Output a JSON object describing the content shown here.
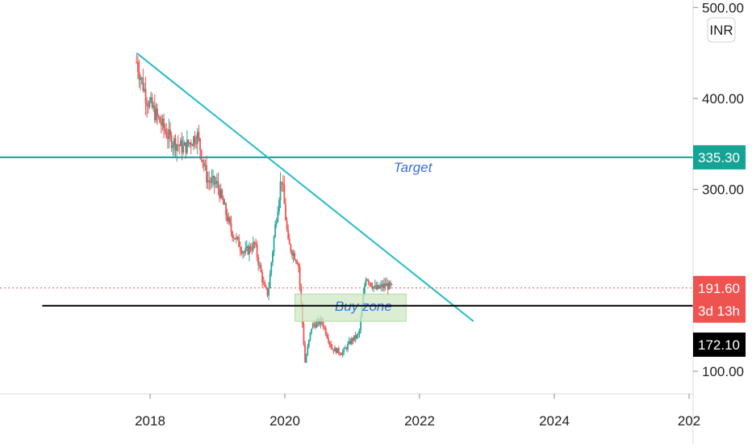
{
  "chart_data": {
    "type": "candlestick",
    "currency": "INR",
    "colors": {
      "up": "#26a69a",
      "down": "#ef5350",
      "trendline": "#22bcc8",
      "target_line": "#14a394",
      "support_line": "#000000",
      "buy_zone_fill": "#cfe8c4",
      "buy_zone_text": "#3a6fd8",
      "target_text": "#3a6fd8",
      "last_price_bg": "#ef5350",
      "support_bg": "#000000",
      "target_bg": "#14a394"
    },
    "x_axis": {
      "ticks": [
        {
          "label": "2018",
          "year": 2018.0
        },
        {
          "label": "2020",
          "year": 2020.0
        },
        {
          "label": "2022",
          "year": 2022.0
        },
        {
          "label": "2024",
          "year": 2024.0
        },
        {
          "label": "202",
          "year": 2026.0
        }
      ]
    },
    "y_axis": {
      "ticks": [
        {
          "label": "500.00",
          "value": 500
        },
        {
          "label": "400.00",
          "value": 400
        },
        {
          "label": "300.00",
          "value": 300
        },
        {
          "label": "100.00",
          "value": 100
        }
      ]
    },
    "price_labels": {
      "target": {
        "value": 335.3,
        "label": "335.30"
      },
      "last": {
        "value": 191.6,
        "label": "191.60",
        "countdown": "3d 13h"
      },
      "support": {
        "value": 172.1,
        "label": "172.10"
      }
    },
    "annotations": {
      "target_text": "Target",
      "buy_zone_text": "Buy zone",
      "buy_zone": {
        "x0": 2020.15,
        "x1": 2021.8,
        "y_top": 185,
        "y_bottom": 155
      },
      "trendline": {
        "x0": 2017.8,
        "y0": 450,
        "x1": 2022.8,
        "y1": 155
      },
      "support_line": {
        "x0": 2016.4,
        "x1": 2027.0,
        "value": 172.1
      },
      "target_line": {
        "value": 335.3
      }
    },
    "anchors": [
      [
        2017.8,
        440
      ],
      [
        2017.95,
        400
      ],
      [
        2018.1,
        380
      ],
      [
        2018.3,
        355
      ],
      [
        2018.5,
        345
      ],
      [
        2018.7,
        360
      ],
      [
        2018.85,
        310
      ],
      [
        2019.0,
        305
      ],
      [
        2019.2,
        255
      ],
      [
        2019.4,
        230
      ],
      [
        2019.55,
        240
      ],
      [
        2019.7,
        190
      ],
      [
        2019.75,
        185
      ],
      [
        2019.85,
        255
      ],
      [
        2019.95,
        315
      ],
      [
        2020.05,
        240
      ],
      [
        2020.2,
        220
      ],
      [
        2020.3,
        110
      ],
      [
        2020.4,
        150
      ],
      [
        2020.55,
        155
      ],
      [
        2020.7,
        125
      ],
      [
        2020.85,
        120
      ],
      [
        2021.0,
        135
      ],
      [
        2021.1,
        140
      ],
      [
        2021.2,
        205
      ],
      [
        2021.35,
        190
      ],
      [
        2021.5,
        195
      ],
      [
        2021.6,
        191.6
      ]
    ],
    "x_start": 2017.8,
    "x_end": 2021.6
  },
  "axis_currency_label": "INR"
}
